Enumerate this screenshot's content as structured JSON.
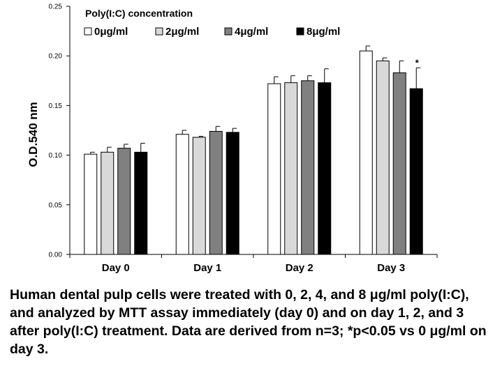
{
  "chart_data": {
    "type": "bar",
    "title": "",
    "ylabel": "O.D.540 nm",
    "xlabel": "",
    "ylim": [
      0,
      0.25
    ],
    "yticks": [
      "0.00",
      "0.05",
      "0.10",
      "0.15",
      "0.20",
      "0.25"
    ],
    "grid": false,
    "categories": [
      "Day 0",
      "Day 1",
      "Day 2",
      "Day 3"
    ],
    "legend": {
      "title": "Poly(I:C) concentration",
      "placement": "top-left"
    },
    "series": [
      {
        "name": "0μg/ml",
        "color": "#ffffff",
        "values": [
          0.101,
          0.121,
          0.172,
          0.205
        ],
        "errors": [
          0.002,
          0.004,
          0.007,
          0.005
        ]
      },
      {
        "name": "2μg/ml",
        "color": "#d9d9d9",
        "values": [
          0.103,
          0.118,
          0.173,
          0.195
        ],
        "errors": [
          0.005,
          0.001,
          0.007,
          0.003
        ]
      },
      {
        "name": "4μg/ml",
        "color": "#808080",
        "values": [
          0.107,
          0.124,
          0.175,
          0.183
        ],
        "errors": [
          0.004,
          0.005,
          0.005,
          0.012
        ]
      },
      {
        "name": "8μg/ml",
        "color": "#000000",
        "values": [
          0.103,
          0.123,
          0.173,
          0.167
        ],
        "errors": [
          0.009,
          0.004,
          0.014,
          0.021
        ]
      }
    ],
    "annotations": [
      {
        "text": "*",
        "category": "Day 3",
        "series": "8μg/ml"
      }
    ]
  },
  "caption": "Human dental pulp cells were treated with 0, 2, 4, and 8 μg/ml poly(I:C), and analyzed by MTT assay immediately (day 0) and on day 1, 2, and 3 after poly(I:C) treatment. Data are derived from n=3; *p<0.05 vs 0 μg/ml on day 3."
}
